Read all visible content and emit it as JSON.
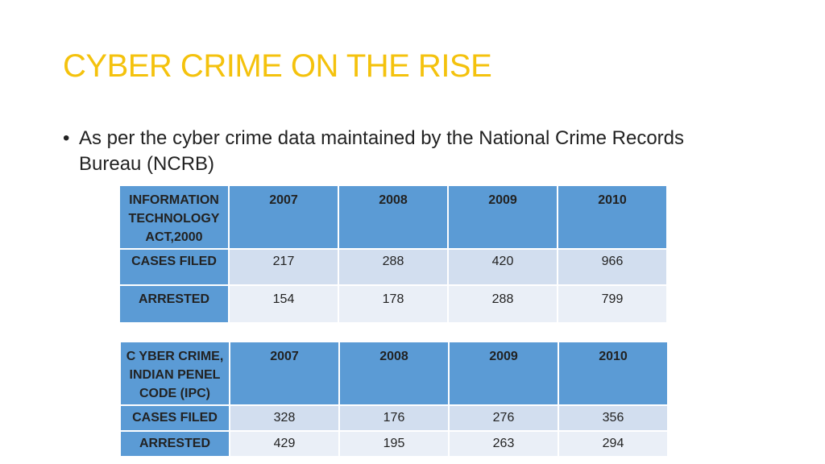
{
  "slide": {
    "title": "CYBER CRIME ON THE RISE",
    "bullet_symbol": "•",
    "bullet_text": "As per the cyber crime data maintained by the National Crime Records Bureau (NCRB)"
  },
  "colors": {
    "title": "#f4c20d",
    "header_fill": "#5b9bd5",
    "row_fill_odd": "#d2deef",
    "row_fill_even": "#eaeff7"
  },
  "table_it_act": {
    "header": [
      "INFORMATION TECHNOLOGY ACT,2000",
      "2007",
      "2008",
      "2009",
      "2010"
    ],
    "rows": [
      {
        "label": "CASES FILED",
        "values": [
          "217",
          "288",
          "420",
          "966"
        ]
      },
      {
        "label": "ARRESTED",
        "values": [
          "154",
          "178",
          "288",
          "799"
        ]
      }
    ]
  },
  "table_ipc": {
    "header": [
      "C YBER CRIME, INDIAN PENEL CODE (IPC)",
      "2007",
      "2008",
      "2009",
      "2010"
    ],
    "rows": [
      {
        "label": "CASES FILED",
        "values": [
          "328",
          "176",
          "276",
          "356"
        ]
      },
      {
        "label": "ARRESTED",
        "values": [
          "429",
          "195",
          "263",
          "294"
        ]
      }
    ]
  }
}
